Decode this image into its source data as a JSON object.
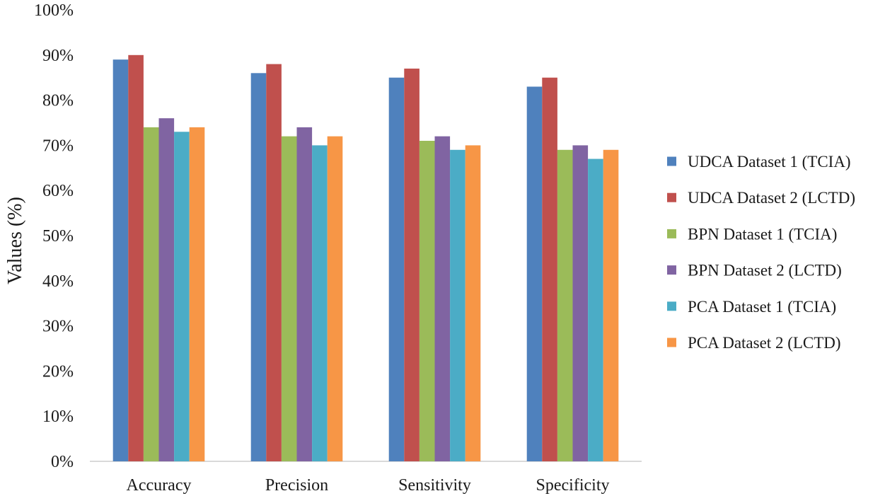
{
  "chart_data": {
    "type": "bar",
    "categories": [
      "Accuracy",
      "Precision",
      "Sensitivity",
      "Specificity"
    ],
    "series": [
      {
        "name": "UDCA Dataset 1 (TCIA)",
        "color": "#4F81BD",
        "values": [
          89,
          86,
          85,
          83
        ]
      },
      {
        "name": "UDCA Dataset 2 (LCTD)",
        "color": "#C0504D",
        "values": [
          90,
          88,
          87,
          85
        ]
      },
      {
        "name": "BPN Dataset 1 (TCIA)",
        "color": "#9BBB59",
        "values": [
          74,
          72,
          71,
          69
        ]
      },
      {
        "name": "BPN Dataset 2 (LCTD)",
        "color": "#8064A2",
        "values": [
          76,
          74,
          72,
          70
        ]
      },
      {
        "name": "PCA Dataset 1 (TCIA)",
        "color": "#4BACC6",
        "values": [
          73,
          70,
          69,
          67
        ]
      },
      {
        "name": "PCA Dataset 2 (LCTD)",
        "color": "#F79646",
        "values": [
          74,
          72,
          70,
          69
        ]
      }
    ],
    "ylabel": "Values (%)",
    "xlabel": "",
    "ylim": [
      0,
      100
    ],
    "yticks": [
      0,
      10,
      20,
      30,
      40,
      50,
      60,
      70,
      80,
      90,
      100
    ],
    "ytick_labels": [
      "0%",
      "10%",
      "20%",
      "30%",
      "40%",
      "50%",
      "60%",
      "70%",
      "80%",
      "90%",
      "100%"
    ],
    "grid": false,
    "legend_position": "right"
  }
}
